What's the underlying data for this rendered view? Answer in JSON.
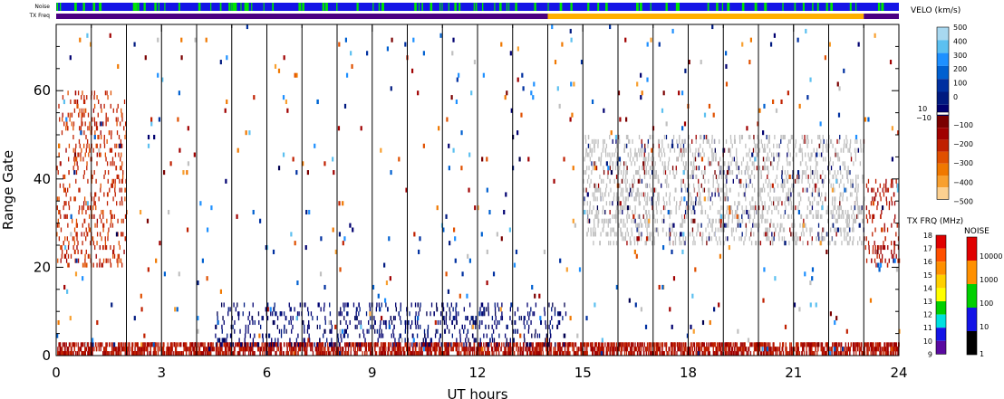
{
  "chart_data": {
    "type": "heatmap",
    "title": "",
    "xlabel": "UT hours",
    "ylabel": "Range Gate",
    "xlim": [
      0,
      24
    ],
    "ylim": [
      0,
      75
    ],
    "x_ticks": [
      "0",
      "3",
      "6",
      "9",
      "12",
      "15",
      "18",
      "21",
      "24"
    ],
    "y_ticks": [
      "0",
      "20",
      "40",
      "60"
    ],
    "scan_boundaries_ut": [
      1,
      2,
      3,
      4,
      5,
      6,
      7,
      8,
      9,
      10,
      11,
      12,
      13,
      14,
      15,
      16,
      17,
      18,
      19,
      20,
      21,
      22,
      23
    ],
    "noise_bar": {
      "label": "Noise",
      "base_color": "#1414e6",
      "accent_color": "#00e600"
    },
    "txfreq_bar": {
      "label": "TX Freq",
      "segments": [
        {
          "start_ut": 0,
          "end_ut": 14,
          "freq_mhz": 10,
          "color": "#4b0082"
        },
        {
          "start_ut": 14,
          "end_ut": 23,
          "freq_mhz": 15,
          "color": "#ffb000"
        },
        {
          "start_ut": 23,
          "end_ut": 24,
          "freq_mhz": 10,
          "color": "#4b0082"
        }
      ]
    },
    "ground_scatter_color": "#c0c0c0",
    "features": [
      {
        "name": "Near-range negative velocity band",
        "ut": [
          0,
          24
        ],
        "gates": [
          0,
          3
        ],
        "velocity": -150
      },
      {
        "name": "Low gate positive velocity patches",
        "ut": [
          4.5,
          14.5
        ],
        "gates": [
          2,
          12
        ],
        "velocity": 50
      },
      {
        "name": "Ground scatter band",
        "ut": [
          15,
          23
        ],
        "gates": [
          25,
          50
        ],
        "velocity": 0
      },
      {
        "name": "Early negative velocity plume",
        "ut": [
          0,
          2
        ],
        "gates": [
          20,
          60
        ],
        "velocity": -200
      },
      {
        "name": "Late negative velocity plume",
        "ut": [
          23,
          24
        ],
        "gates": [
          20,
          40
        ],
        "velocity": -150
      }
    ],
    "velo_colorbar": {
      "title": "VELO (km/s)",
      "tick_labels_positive": [
        "500",
        "400",
        "300",
        "200",
        "100",
        "0"
      ],
      "tick_labels_middle": [
        "10",
        "−10"
      ],
      "tick_labels_negative": [
        "−100",
        "−200",
        "−300",
        "−400",
        "−500"
      ],
      "colors_positive": [
        "#a8d8f0",
        "#5cc0f0",
        "#1e90ff",
        "#0060d0",
        "#0030a0",
        "#001a80",
        "#000070"
      ],
      "colors_negative": [
        "#7a0000",
        "#a00000",
        "#c02000",
        "#e05000",
        "#f07800",
        "#f8a030",
        "#fcd090"
      ]
    },
    "txfrq_colorbar": {
      "title": "TX FRQ (MHz)",
      "tick_labels": [
        "18",
        "17",
        "16",
        "15",
        "14",
        "13",
        "12",
        "11",
        "10",
        "9"
      ],
      "colors": [
        "#e00000",
        "#ff5000",
        "#ff9000",
        "#ffd000",
        "#ffff00",
        "#00d000",
        "#00e0e0",
        "#1414e6",
        "#5a0aa0"
      ]
    },
    "noise_colorbar": {
      "title": "NOISE",
      "tick_labels": [
        "10000",
        "1000",
        "100",
        "10",
        "1"
      ],
      "colors": [
        "#e00000",
        "#ff9000",
        "#00d000",
        "#1414e6",
        "#000000"
      ]
    }
  }
}
